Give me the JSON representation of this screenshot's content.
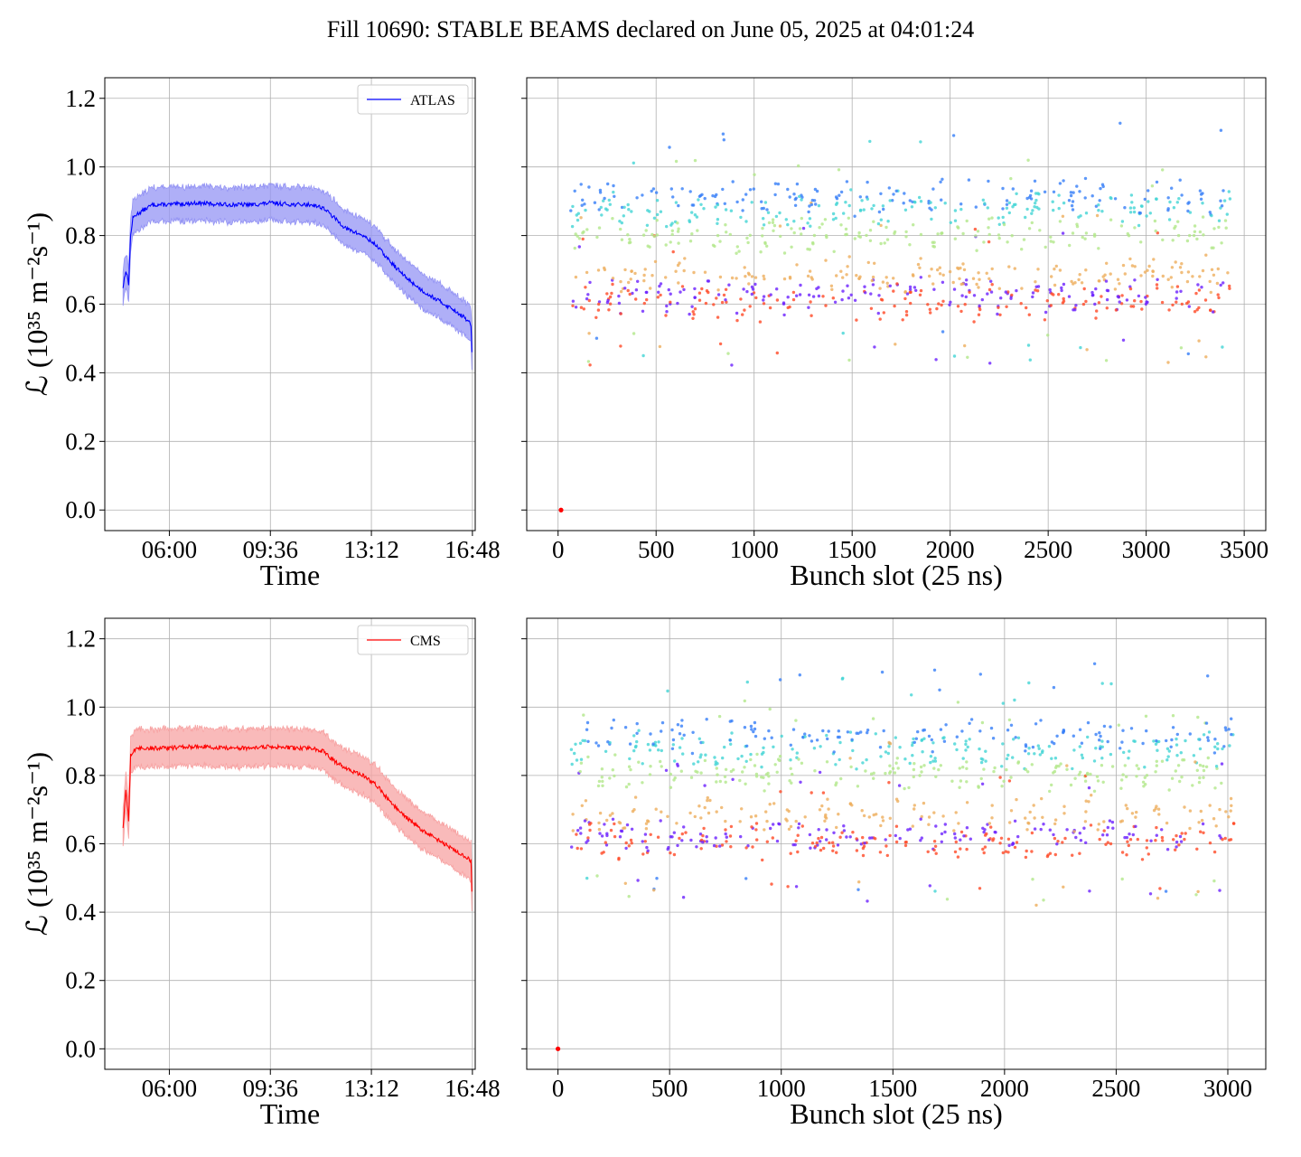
{
  "figure": {
    "title": "Fill 10690: STABLE BEAMS declared on June 05, 2025 at 04:01:24"
  },
  "chart_data": [
    {
      "id": "atlas-lumi-vs-time",
      "type": "line",
      "xlabel": "Time",
      "ylabel": "ℒ (10³⁵ m⁻²s⁻¹)",
      "x_ticks": [
        "06:00",
        "09:36",
        "13:12",
        "16:48"
      ],
      "x_tick_hours": [
        6.0,
        9.6,
        13.2,
        16.8
      ],
      "xlim_hours": [
        3.7,
        16.9
      ],
      "ylim": [
        -0.06,
        1.26
      ],
      "y_ticks": [
        "0.0",
        "0.2",
        "0.4",
        "0.6",
        "0.8",
        "1.0",
        "1.2"
      ],
      "grid": true,
      "legend_position": "top-right",
      "color": "#0000ff",
      "band_color": "#9494f4",
      "series": [
        {
          "name": "ATLAS",
          "x_hours": [
            4.35,
            4.45,
            4.55,
            4.62,
            4.7,
            4.8,
            5.0,
            5.2,
            5.4,
            5.7,
            6.0,
            7.0,
            8.0,
            9.0,
            9.6,
            10.5,
            11.1,
            11.5,
            11.9,
            12.3,
            12.9,
            13.4,
            13.8,
            14.4,
            15.0,
            15.6,
            16.2,
            16.6,
            16.75,
            16.78
          ],
          "y": [
            0.65,
            0.7,
            0.66,
            0.8,
            0.85,
            0.86,
            0.87,
            0.88,
            0.89,
            0.89,
            0.89,
            0.895,
            0.89,
            0.89,
            0.895,
            0.89,
            0.89,
            0.88,
            0.85,
            0.82,
            0.8,
            0.77,
            0.73,
            0.68,
            0.64,
            0.61,
            0.58,
            0.555,
            0.54,
            0.46
          ],
          "band_halfwidth": 0.05
        }
      ]
    },
    {
      "id": "atlas-lumi-vs-bunch",
      "type": "scatter",
      "xlabel": "Bunch slot (25 ns)",
      "x_ticks": [
        0,
        500,
        1000,
        1500,
        2000,
        2500,
        3000,
        3500
      ],
      "xlim": [
        -160,
        3610
      ],
      "ylim": [
        -0.06,
        1.26
      ],
      "y_ticks": [
        0.0,
        0.2,
        0.4,
        0.6,
        0.8,
        1.0,
        1.2
      ],
      "grid": true,
      "color_scale": "rainbow (by time, purple early → red late)",
      "x_range_filled": [
        50,
        3430
      ],
      "y_range_typical": [
        0.55,
        1.05
      ],
      "outlier_point": {
        "x": 15,
        "y": 0.0
      }
    },
    {
      "id": "cms-lumi-vs-time",
      "type": "line",
      "xlabel": "Time",
      "ylabel": "ℒ (10³⁵ m⁻²s⁻¹)",
      "x_ticks": [
        "06:00",
        "09:36",
        "13:12",
        "16:48"
      ],
      "x_tick_hours": [
        6.0,
        9.6,
        13.2,
        16.8
      ],
      "xlim_hours": [
        3.7,
        16.9
      ],
      "ylim": [
        -0.06,
        1.26
      ],
      "y_ticks": [
        "0.0",
        "0.2",
        "0.4",
        "0.6",
        "0.8",
        "1.0",
        "1.2"
      ],
      "grid": true,
      "legend_position": "top-right",
      "color": "#ff0000",
      "band_color": "#f7a3a3",
      "series": [
        {
          "name": "CMS",
          "x_hours": [
            4.35,
            4.45,
            4.55,
            4.62,
            4.7,
            4.8,
            5.0,
            5.2,
            5.4,
            5.7,
            6.0,
            7.0,
            8.0,
            9.0,
            9.6,
            10.5,
            11.1,
            11.5,
            11.9,
            12.3,
            12.9,
            13.4,
            13.8,
            14.4,
            15.0,
            15.6,
            16.2,
            16.6,
            16.75,
            16.78
          ],
          "y": [
            0.64,
            0.76,
            0.67,
            0.86,
            0.87,
            0.875,
            0.88,
            0.88,
            0.88,
            0.88,
            0.88,
            0.885,
            0.88,
            0.88,
            0.885,
            0.88,
            0.88,
            0.87,
            0.84,
            0.82,
            0.8,
            0.77,
            0.73,
            0.68,
            0.64,
            0.61,
            0.58,
            0.56,
            0.55,
            0.46
          ],
          "band_halfwidth": 0.055
        }
      ]
    },
    {
      "id": "cms-lumi-vs-bunch",
      "type": "scatter",
      "xlabel": "Bunch slot (25 ns)",
      "x_ticks": [
        0,
        500,
        1000,
        1500,
        2000,
        2500,
        3000
      ],
      "xlim": [
        -140,
        3170
      ],
      "ylim": [
        -0.06,
        1.26
      ],
      "y_ticks": [
        0.0,
        0.2,
        0.4,
        0.6,
        0.8,
        1.0,
        1.2
      ],
      "grid": true,
      "color_scale": "rainbow (by time, purple early → red late)",
      "x_range_filled": [
        45,
        3030
      ],
      "y_range_typical": [
        0.55,
        1.05
      ],
      "outlier_point": {
        "x": 0,
        "y": 0.0
      }
    }
  ]
}
